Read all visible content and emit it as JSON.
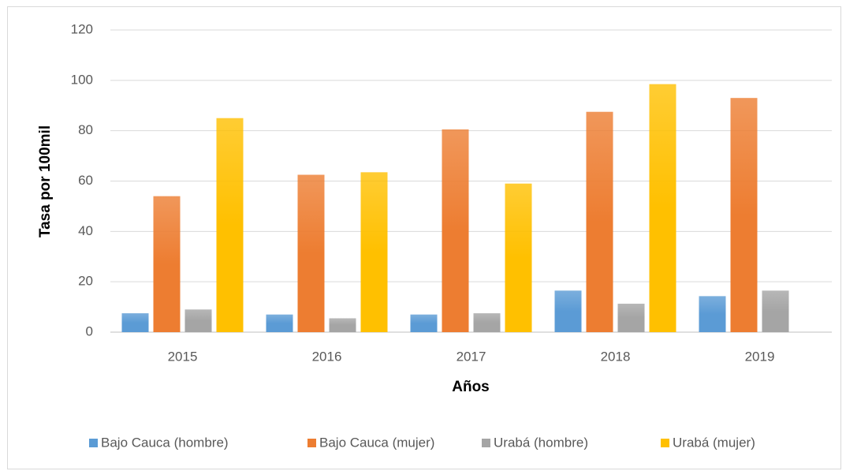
{
  "chart_data": {
    "type": "bar",
    "y_label": "Tasa por 100mil",
    "x_label": "Años",
    "categories": [
      "2015",
      "2016",
      "2017",
      "2018",
      "2019"
    ],
    "series": [
      {
        "name": "Bajo Cauca (hombre)",
        "color": "#5b9bd5",
        "values": [
          7.5,
          7,
          7,
          16.5,
          14.3
        ]
      },
      {
        "name": "Bajo Cauca (mujer)",
        "color": "#ed7d31",
        "values": [
          54,
          62.5,
          80.5,
          87.5,
          93
        ]
      },
      {
        "name": "Urabá (hombre)",
        "color": "#a5a5a5",
        "values": [
          9,
          5.5,
          7.5,
          11.3,
          16.5
        ]
      },
      {
        "name": "Urabá (mujer)",
        "color": "#ffc000",
        "values": [
          85,
          63.5,
          59,
          98.5,
          null
        ]
      }
    ],
    "ylim": [
      0,
      120
    ],
    "yticks": [
      0,
      20,
      40,
      60,
      80,
      100,
      120
    ],
    "grid": true,
    "legend": "bottom"
  }
}
